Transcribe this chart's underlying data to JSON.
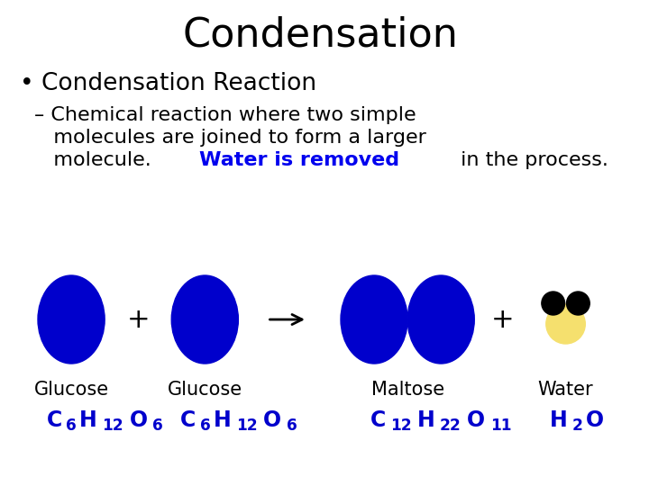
{
  "title": "Condensation",
  "bullet": "Condensation Reaction",
  "sub_line1": "– Chemical reaction where two simple",
  "sub_line2": "   molecules are joined to form a larger",
  "sub_line3_pre": "   molecule.  ",
  "sub_line3_highlight": "Water is removed",
  "sub_line3_post": " in the process.",
  "blue_color": "#0000CC",
  "yellow_color": "#F5E06E",
  "black_color": "#000000",
  "highlight_color": "#0000EE",
  "bg_color": "#FFFFFF",
  "labels": [
    "Glucose",
    "Glucose",
    "Maltose",
    "Water"
  ],
  "formula_parts": [
    [
      [
        "C",
        false
      ],
      [
        "6",
        true
      ],
      [
        "H",
        false
      ],
      [
        "12",
        true
      ],
      [
        "O",
        false
      ],
      [
        "6",
        true
      ]
    ],
    [
      [
        "C",
        false
      ],
      [
        "6",
        true
      ],
      [
        "H",
        false
      ],
      [
        "12",
        true
      ],
      [
        "O",
        false
      ],
      [
        "6",
        true
      ]
    ],
    [
      [
        "C",
        false
      ],
      [
        "12",
        true
      ],
      [
        "H",
        false
      ],
      [
        "22",
        true
      ],
      [
        "O",
        false
      ],
      [
        "11",
        true
      ]
    ],
    [
      [
        "H",
        false
      ],
      [
        "2",
        true
      ],
      [
        "O",
        false
      ]
    ]
  ],
  "font_size_title": 32,
  "font_size_bullet": 19,
  "font_size_sub": 16,
  "font_size_label": 15,
  "font_size_formula": 17
}
